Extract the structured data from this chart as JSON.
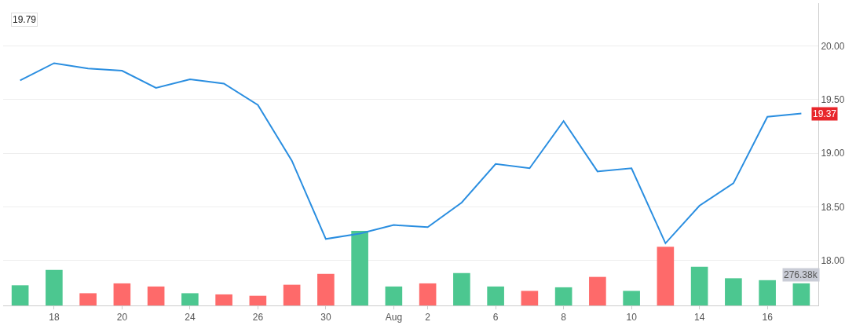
{
  "chart_data": {
    "type": "line",
    "categories": [
      null,
      "18",
      null,
      "20",
      null,
      "24",
      null,
      "26",
      null,
      "30",
      null,
      "Aug",
      "2",
      null,
      "6",
      null,
      "8",
      null,
      "10",
      null,
      "14",
      null,
      "16",
      null
    ],
    "series": [
      {
        "type": "bar",
        "axis": "y2",
        "colors": [
          "#4cc790",
          "#4cc790",
          "#fe6a6a",
          "#fe6a6a",
          "#fe6a6a",
          "#4cc790",
          "#fe6a6a",
          "#fe6a6a",
          "#fe6a6a",
          "#fe6a6a",
          "#4cc790",
          "#4cc790",
          "#fe6a6a",
          "#4cc790",
          "#4cc790",
          "#fe6a6a",
          "#4cc790",
          "#fe6a6a",
          "#4cc790",
          "#fe6a6a",
          "#4cc790",
          "#4cc790",
          "#4cc790",
          "#4cc790"
        ],
        "values": [
          252,
          444,
          153,
          276,
          237,
          153,
          138,
          121,
          259,
          395,
          932,
          237,
          276,
          405,
          237,
          182,
          227,
          357,
          182,
          734,
          484,
          340,
          316,
          276.38
        ],
        "value_labels": [
          null,
          null,
          null,
          null,
          null,
          null,
          null,
          null,
          null,
          null,
          null,
          null,
          null,
          null,
          null,
          null,
          null,
          null,
          null,
          null,
          null,
          null,
          null,
          "276.38k"
        ]
      },
      {
        "color": "#2a8ee0",
        "values": [
          19.68,
          19.84,
          19.79,
          19.77,
          19.61,
          19.69,
          19.65,
          19.45,
          18.93,
          18.2,
          18.25,
          18.33,
          18.31,
          18.54,
          18.9,
          18.86,
          19.3,
          18.83,
          18.86,
          18.16,
          18.51,
          18.72,
          19.34,
          19.37
        ],
        "value_labels": [
          null,
          null,
          null,
          null,
          null,
          null,
          null,
          null,
          null,
          null,
          null,
          null,
          null,
          null,
          null,
          null,
          null,
          null,
          null,
          null,
          null,
          null,
          null,
          "19.37"
        ]
      }
    ],
    "ylim": [
      17.58,
      20.4
    ],
    "yticks": [
      {
        "value": 18,
        "label": "18.00"
      },
      {
        "value": 18.5,
        "label": "18.50"
      },
      {
        "value": 19,
        "label": "19.00"
      },
      {
        "value": 19.5,
        "label": "19.50"
      },
      {
        "value": 20,
        "label": "20.00"
      }
    ],
    "y2lim": [
      0,
      3780
    ],
    "tick_labels": "xy",
    "grid": "y",
    "annotations": [
      "19.79"
    ]
  }
}
